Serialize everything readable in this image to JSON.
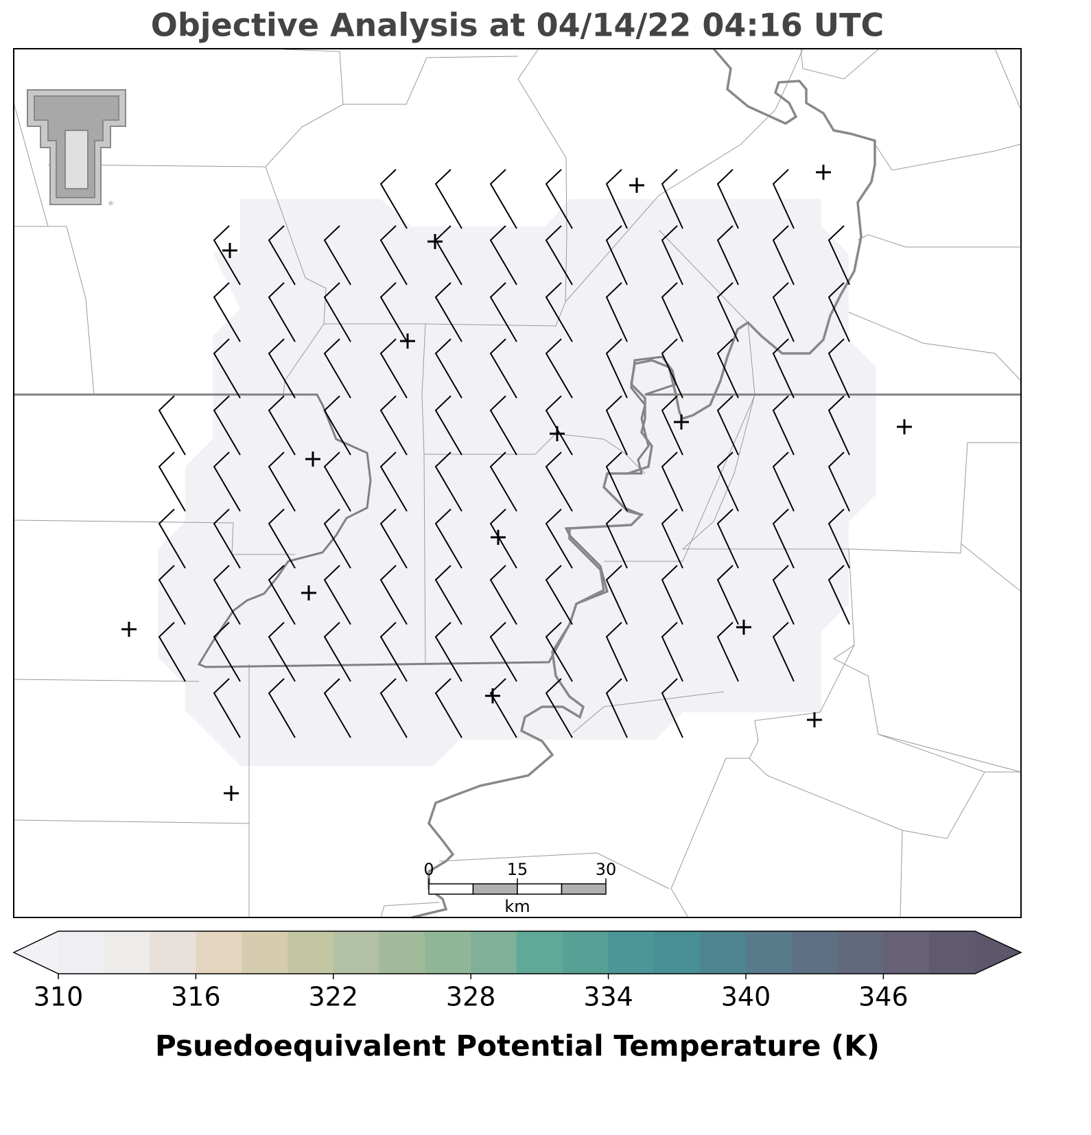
{
  "title": "Objective Analysis at 04/14/22 04:16 UTC",
  "scale_bar": {
    "lim": [
      0,
      30
    ],
    "ticks": [
      0,
      15,
      30
    ],
    "unit": "km"
  },
  "colorbar": {
    "label": "Psuedoequivalent Potential Temperature (K)",
    "lim": [
      310,
      350
    ],
    "ticks": [
      310,
      316,
      322,
      328,
      334,
      340,
      346
    ],
    "under_color": "#f2f1f6",
    "over_color": "#5d576b",
    "colors": [
      "#efeef2",
      "#eeebeb",
      "#e8e0da",
      "#e4d5c0",
      "#d6cdb0",
      "#c4c6a3",
      "#b2c1a4",
      "#a0ba9a",
      "#90b597",
      "#80b098",
      "#60a897",
      "#56a096",
      "#4b9696",
      "#478e95",
      "#4c848f",
      "#587a89",
      "#5e7184",
      "#63697d",
      "#666176",
      "#605a6f"
    ]
  }
}
